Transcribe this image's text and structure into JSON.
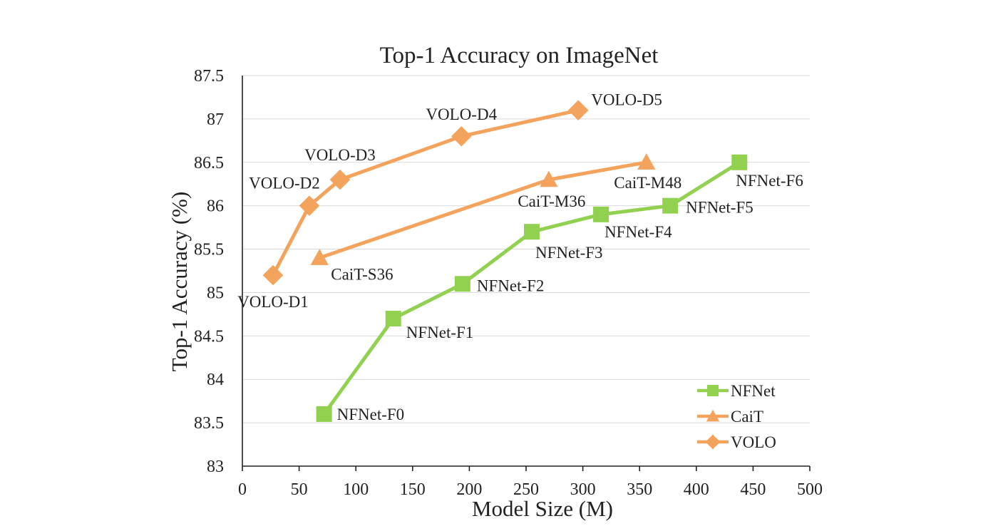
{
  "chart_data": {
    "type": "line",
    "title": "Top-1 Accuracy on ImageNet",
    "xlabel": "Model Size (M)",
    "ylabel": "Top-1 Accuracy (%)",
    "xlim": [
      0,
      500
    ],
    "ylim": [
      83,
      87.5
    ],
    "xticks": [
      0,
      50,
      100,
      150,
      200,
      250,
      300,
      350,
      400,
      450,
      500
    ],
    "yticks": [
      83,
      83.5,
      84,
      84.5,
      85,
      85.5,
      86,
      86.5,
      87,
      87.5
    ],
    "ytick_labels": [
      "83",
      "83.5",
      "84",
      "84.5",
      "85",
      "85.5",
      "86",
      "86.5",
      "87",
      "87.5"
    ],
    "grid": "horizontal",
    "legend_position": "bottom-right",
    "series": [
      {
        "name": "NFNet",
        "color": "#92d050",
        "marker": "square",
        "points": [
          {
            "x": 72,
            "y": 83.6,
            "label": "NFNet-F0"
          },
          {
            "x": 133,
            "y": 84.7,
            "label": "NFNet-F1"
          },
          {
            "x": 194,
            "y": 85.1,
            "label": "NFNet-F2"
          },
          {
            "x": 255,
            "y": 85.7,
            "label": "NFNet-F3"
          },
          {
            "x": 316,
            "y": 85.9,
            "label": "NFNet-F4"
          },
          {
            "x": 377,
            "y": 86.0,
            "label": "NFNet-F5"
          },
          {
            "x": 438,
            "y": 86.5,
            "label": "NFNet-F6"
          }
        ]
      },
      {
        "name": "CaiT",
        "color": "#f4a35c",
        "marker": "triangle",
        "points": [
          {
            "x": 68,
            "y": 85.4,
            "label": "CaiT-S36"
          },
          {
            "x": 270,
            "y": 86.3,
            "label": "CaiT-M36"
          },
          {
            "x": 356,
            "y": 86.5,
            "label": "CaiT-M48"
          }
        ]
      },
      {
        "name": "VOLO",
        "color": "#f4a35c",
        "marker": "diamond",
        "points": [
          {
            "x": 27,
            "y": 85.2,
            "label": "VOLO-D1"
          },
          {
            "x": 59,
            "y": 86.0,
            "label": "VOLO-D2"
          },
          {
            "x": 86,
            "y": 86.3,
            "label": "VOLO-D3"
          },
          {
            "x": 193,
            "y": 86.8,
            "label": "VOLO-D4"
          },
          {
            "x": 296,
            "y": 87.1,
            "label": "VOLO-D5"
          }
        ]
      }
    ]
  }
}
